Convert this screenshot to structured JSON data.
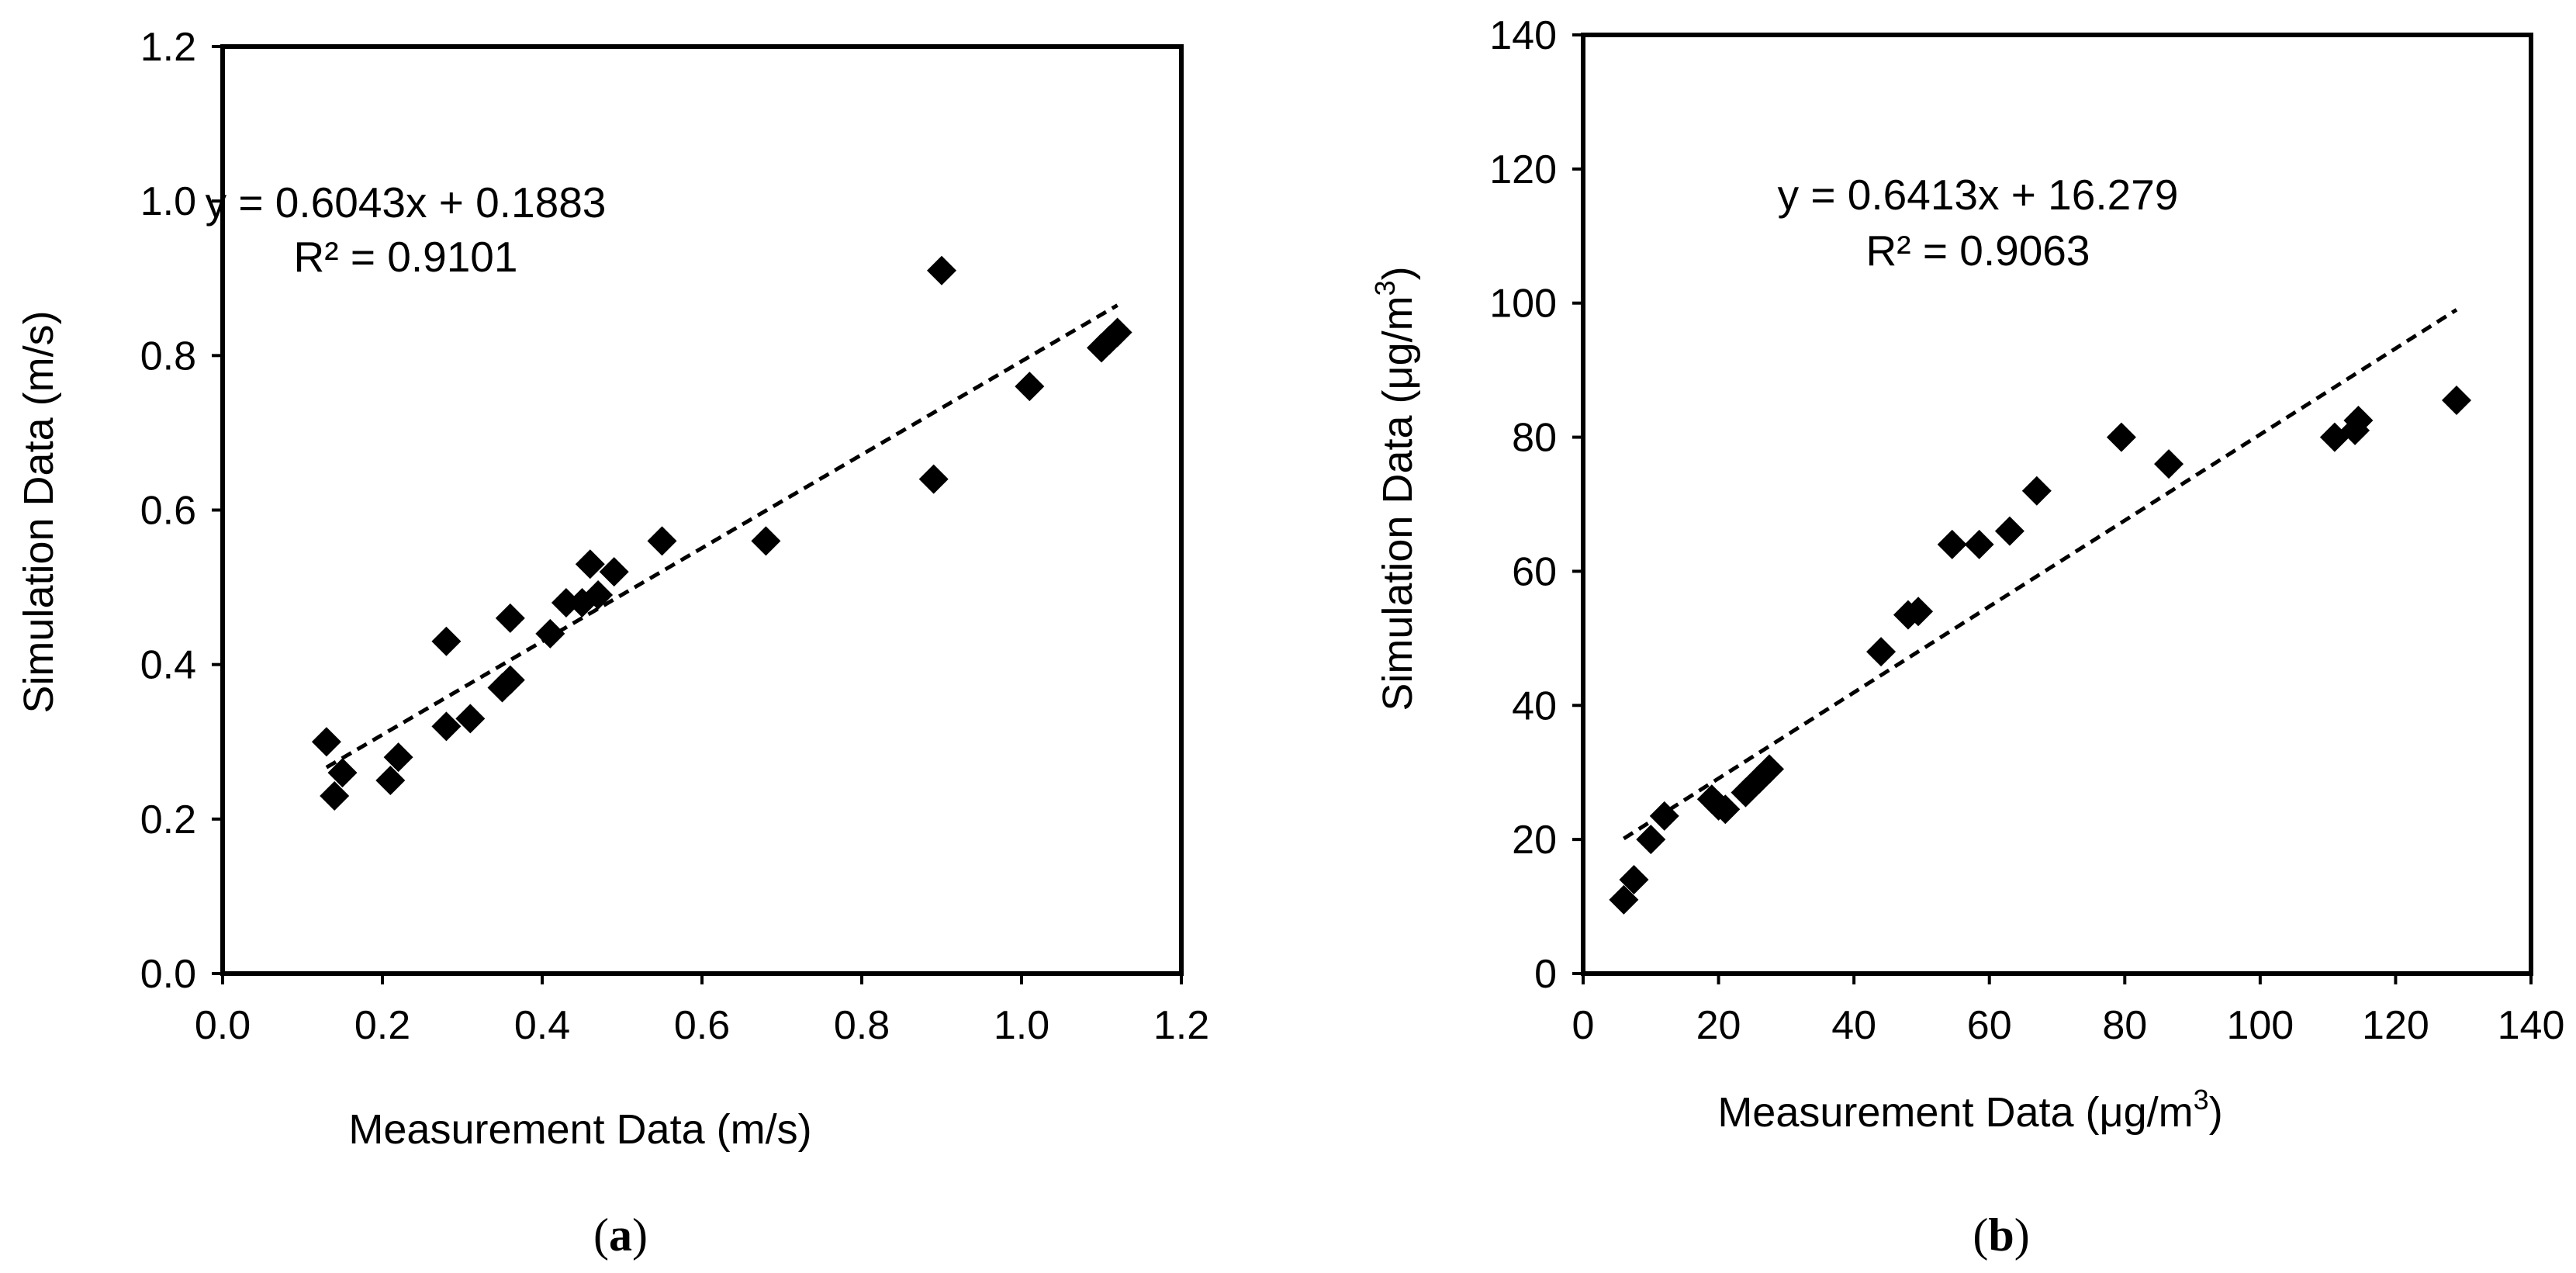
{
  "chart_data": [
    {
      "type": "scatter",
      "panel_label": {
        "open": "(",
        "letter": "a",
        "close": ")"
      },
      "xlabel": "Measurement Data (m/s)",
      "ylabel": "Simulation Data (m/s)",
      "xlim": [
        0,
        1.2
      ],
      "ylim": [
        0,
        1.2
      ],
      "xticks": [
        0,
        0.2,
        0.4,
        0.6,
        0.8,
        1.0,
        1.2
      ],
      "yticks": [
        0,
        0.2,
        0.4,
        0.6,
        0.8,
        1.0,
        1.2
      ],
      "xtick_labels": [
        "0.0",
        "0.2",
        "0.4",
        "0.6",
        "0.8",
        "1.0",
        "1.2"
      ],
      "ytick_labels": [
        "0.0",
        "0.2",
        "0.4",
        "0.6",
        "0.8",
        "1.0",
        "1.2"
      ],
      "grid": false,
      "marker": "diamond",
      "marker_color": "#000000",
      "points": [
        [
          0.13,
          0.3
        ],
        [
          0.14,
          0.23
        ],
        [
          0.15,
          0.26
        ],
        [
          0.21,
          0.25
        ],
        [
          0.22,
          0.28
        ],
        [
          0.28,
          0.43
        ],
        [
          0.28,
          0.32
        ],
        [
          0.31,
          0.33
        ],
        [
          0.35,
          0.37
        ],
        [
          0.36,
          0.38
        ],
        [
          0.36,
          0.46
        ],
        [
          0.41,
          0.44
        ],
        [
          0.43,
          0.48
        ],
        [
          0.45,
          0.48
        ],
        [
          0.46,
          0.53
        ],
        [
          0.47,
          0.49
        ],
        [
          0.49,
          0.52
        ],
        [
          0.55,
          0.56
        ],
        [
          0.68,
          0.56
        ],
        [
          0.89,
          0.64
        ],
        [
          0.9,
          0.91
        ],
        [
          1.01,
          0.76
        ],
        [
          1.1,
          0.81
        ],
        [
          1.11,
          0.82
        ],
        [
          1.12,
          0.83
        ]
      ],
      "trendline": {
        "slope": 0.6043,
        "intercept": 0.1883,
        "x_range": [
          0.13,
          1.12
        ],
        "style": "dashed"
      },
      "equation_text": "y = 0.6043x + 0.1883",
      "r2_text": "R² = 0.9101"
    },
    {
      "type": "scatter",
      "panel_label": {
        "open": "(",
        "letter": "b",
        "close": ")"
      },
      "xlabel": "Measurement Data (μg/m",
      "xlabel_sup": "3",
      "xlabel_tail": ")",
      "ylabel": "Simulation Data (μg/m",
      "ylabel_sup": "3",
      "ylabel_tail": ")",
      "xlim": [
        0,
        140
      ],
      "ylim": [
        0,
        140
      ],
      "xticks": [
        0,
        20,
        40,
        60,
        80,
        100,
        120,
        140
      ],
      "yticks": [
        0,
        20,
        40,
        60,
        80,
        100,
        120,
        140
      ],
      "xtick_labels": [
        "0",
        "20",
        "40",
        "60",
        "80",
        "100",
        "120",
        "140"
      ],
      "ytick_labels": [
        "0",
        "20",
        "40",
        "60",
        "80",
        "100",
        "120",
        "140"
      ],
      "grid": false,
      "marker": "diamond",
      "marker_color": "#000000",
      "points": [
        [
          6,
          11
        ],
        [
          7.5,
          14
        ],
        [
          10,
          20
        ],
        [
          12,
          23.5
        ],
        [
          19,
          26
        ],
        [
          20,
          25
        ],
        [
          21,
          24.5
        ],
        [
          24,
          27
        ],
        [
          26,
          29
        ],
        [
          27.5,
          30.5
        ],
        [
          44,
          48
        ],
        [
          48,
          53.5
        ],
        [
          49.5,
          54
        ],
        [
          54.5,
          64
        ],
        [
          58.5,
          64
        ],
        [
          63,
          66
        ],
        [
          67,
          72
        ],
        [
          79.5,
          80
        ],
        [
          86.5,
          76
        ],
        [
          111,
          80
        ],
        [
          114,
          81
        ],
        [
          114.5,
          82.5
        ],
        [
          129,
          85.5
        ]
      ],
      "trendline": {
        "slope": 0.6413,
        "intercept": 16.279,
        "x_range": [
          6,
          129
        ],
        "style": "dashed"
      },
      "equation_text": "y = 0.6413x + 16.279",
      "r2_text": "R² = 0.9063"
    }
  ]
}
